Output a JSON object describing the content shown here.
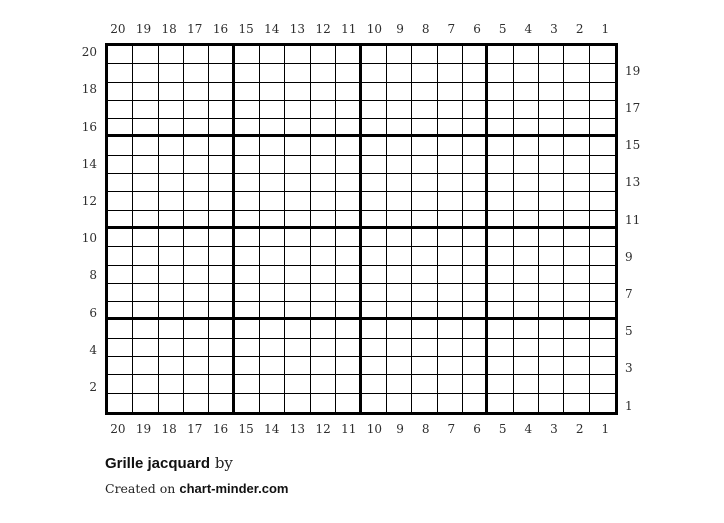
{
  "page": {
    "background": "#ffffff"
  },
  "chart_data": {
    "type": "heatmap",
    "title": "Grille jacquard",
    "rows": 20,
    "columns": 20,
    "column_labels_top": [
      "20",
      "19",
      "18",
      "17",
      "16",
      "15",
      "14",
      "13",
      "12",
      "11",
      "10",
      "9",
      "8",
      "7",
      "6",
      "5",
      "4",
      "3",
      "2",
      "1"
    ],
    "column_labels_bottom": [
      "20",
      "19",
      "18",
      "17",
      "16",
      "15",
      "14",
      "13",
      "12",
      "11",
      "10",
      "9",
      "8",
      "7",
      "6",
      "5",
      "4",
      "3",
      "2",
      "1"
    ],
    "row_labels_left": [
      "20",
      "",
      "18",
      "",
      "16",
      "",
      "14",
      "",
      "12",
      "",
      "10",
      "",
      "8",
      "",
      "6",
      "",
      "4",
      "",
      "2",
      ""
    ],
    "row_labels_right": [
      "",
      "19",
      "",
      "17",
      "",
      "15",
      "",
      "13",
      "",
      "11",
      "",
      "9",
      "",
      "7",
      "",
      "5",
      "",
      "3",
      "",
      "1"
    ],
    "all_cells_empty": true,
    "cell_fill": "#ffffff",
    "grid_line_color": "#000000",
    "bold_gridline_every": 5,
    "legend": "none"
  },
  "footer": {
    "title": "Grille jacquard",
    "by_label": "by",
    "created_prefix": "Created on",
    "site": "chart-minder.com"
  }
}
